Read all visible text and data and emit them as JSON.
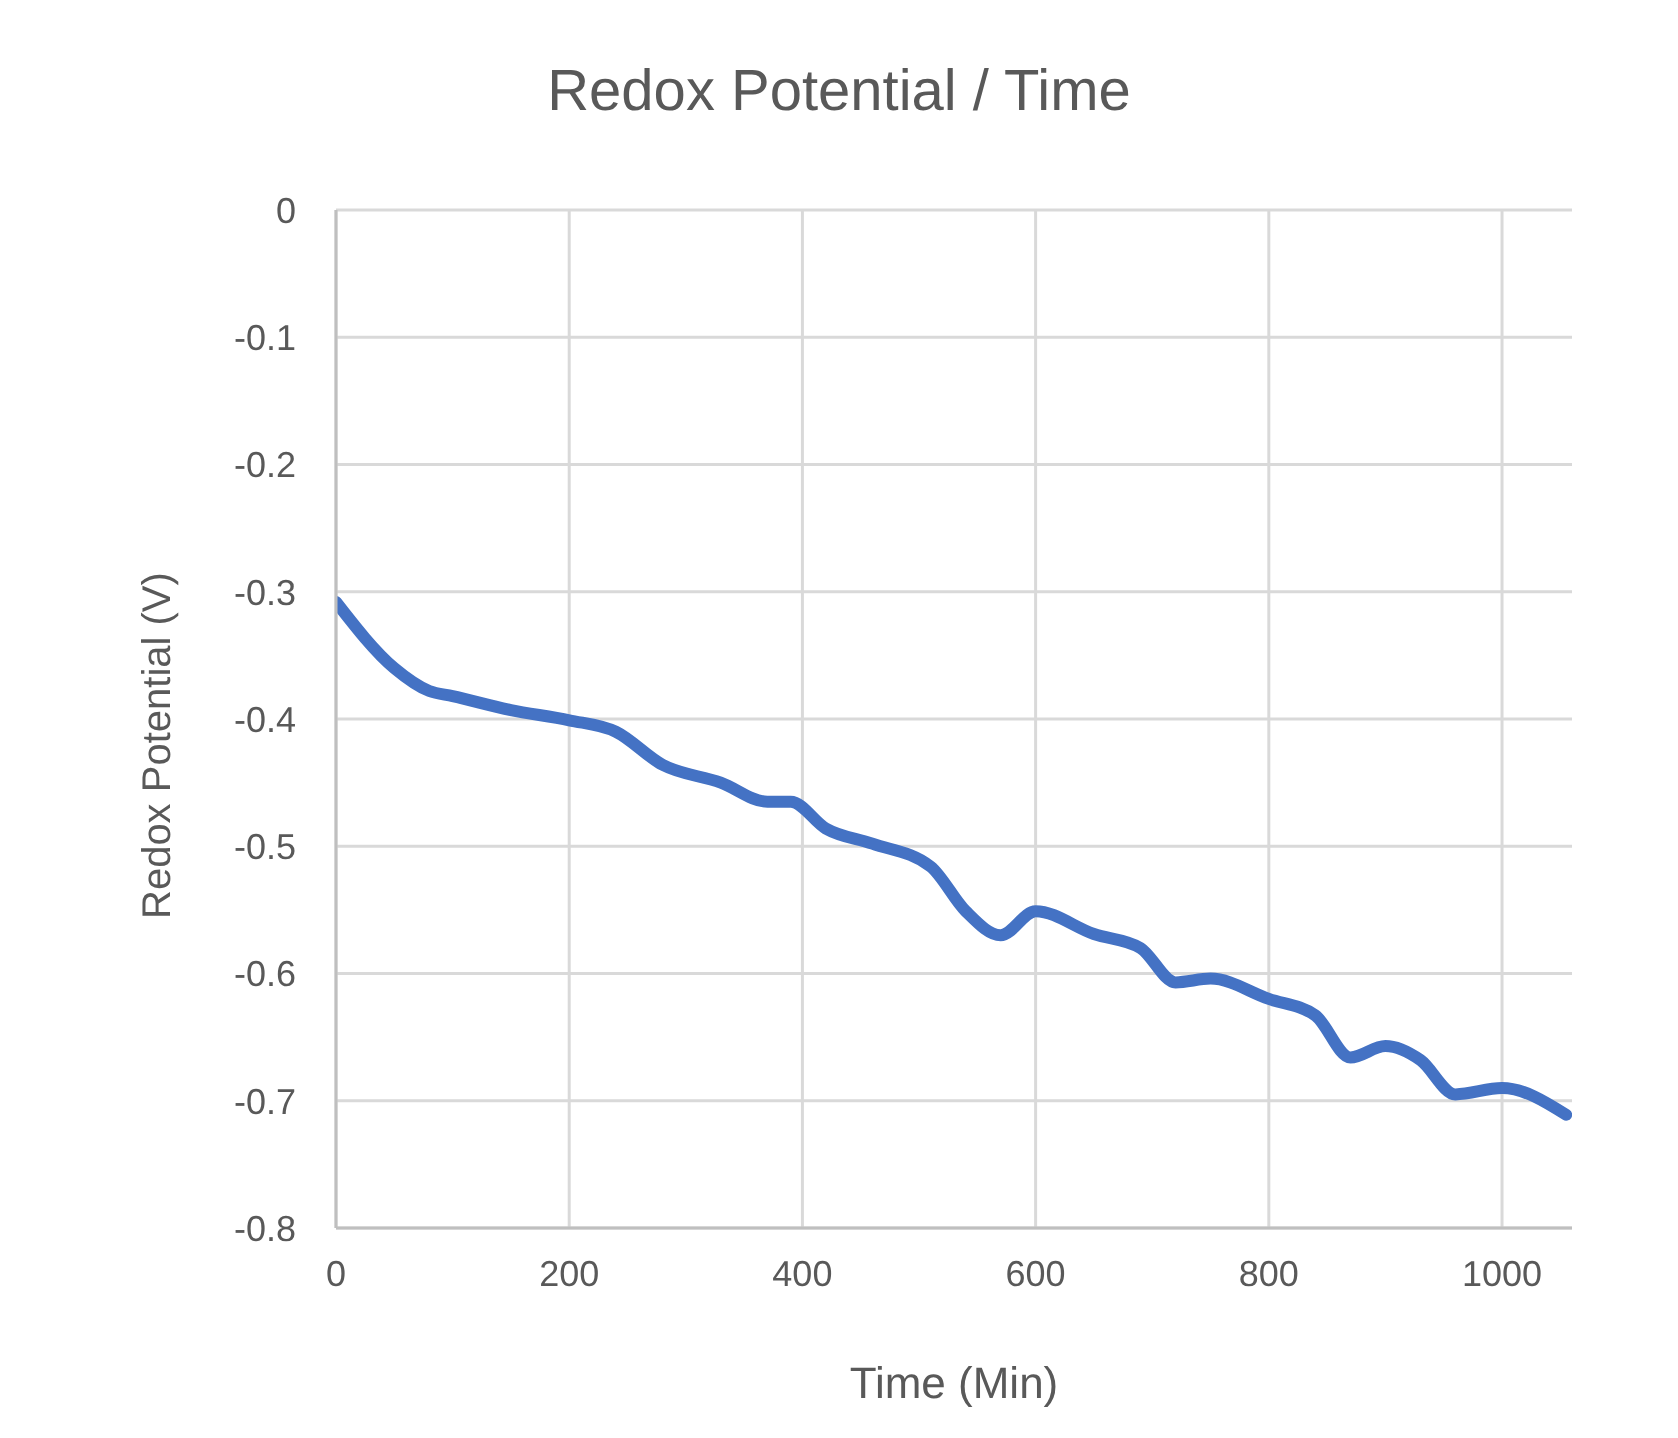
{
  "chart_data": {
    "type": "line",
    "title": "Redox Potential / Time",
    "xlabel": "Time (Min)",
    "ylabel": "Redox Potential  (V)",
    "x": [
      0,
      50,
      80,
      100,
      150,
      200,
      240,
      280,
      330,
      370,
      390,
      420,
      460,
      510,
      540,
      570,
      600,
      650,
      690,
      720,
      750,
      800,
      840,
      870,
      900,
      930,
      960,
      1000,
      1055
    ],
    "series": [
      {
        "color": "#4472c4",
        "values": [
          -0.308,
          -0.36,
          -0.378,
          -0.382,
          -0.393,
          -0.401,
          -0.41,
          -0.436,
          -0.45,
          -0.465,
          -0.465,
          -0.486,
          -0.498,
          -0.516,
          -0.551,
          -0.57,
          -0.551,
          -0.569,
          -0.58,
          -0.607,
          -0.604,
          -0.62,
          -0.633,
          -0.666,
          -0.657,
          -0.668,
          -0.695,
          -0.69,
          -0.711
        ]
      }
    ],
    "xlim": [
      0,
      1060
    ],
    "xticks": [
      0,
      200,
      400,
      600,
      800,
      1000
    ],
    "ylim": [
      -0.8,
      0
    ],
    "yticks": [
      0,
      -0.1,
      -0.2,
      -0.3,
      -0.4,
      -0.5,
      -0.6,
      -0.7,
      -0.8
    ],
    "grid": true,
    "legend": false,
    "marker": "none",
    "line_style": "solid"
  }
}
